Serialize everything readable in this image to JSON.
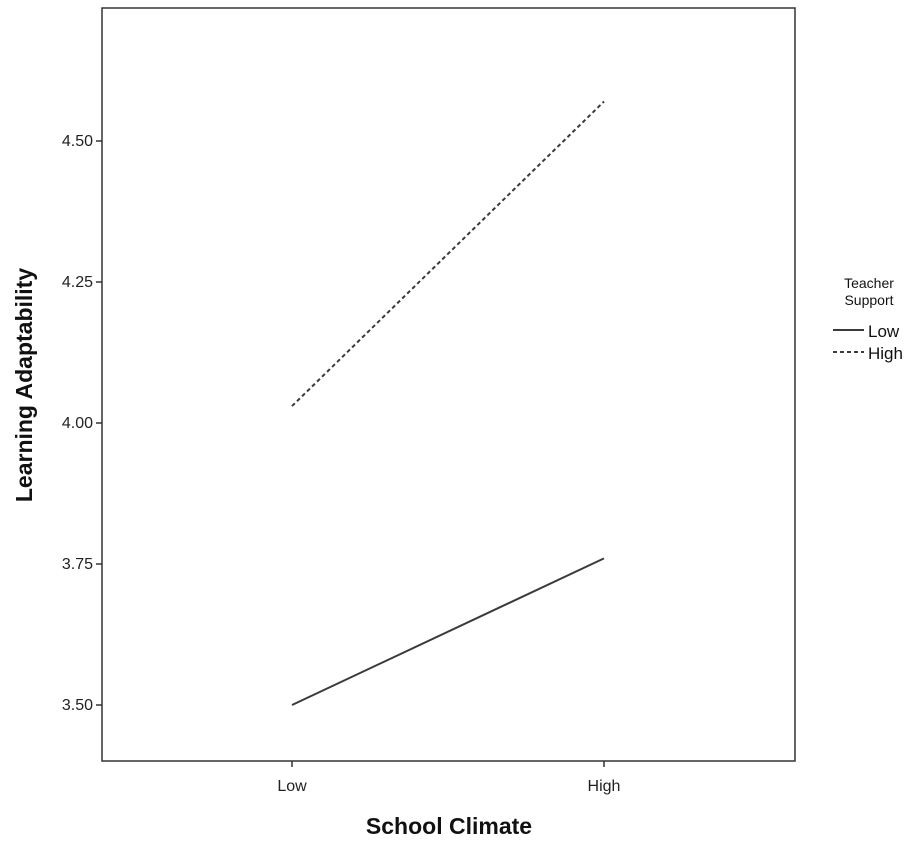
{
  "chart_data": {
    "type": "line",
    "title": "",
    "xlabel": "School Climate",
    "ylabel": "Learning Adaptability",
    "categories": [
      "Low",
      "High"
    ],
    "y_ticks": [
      "3.50",
      "3.75",
      "4.00",
      "4.25",
      "4.50"
    ],
    "ylim": [
      3.41,
      4.74
    ],
    "grid": false,
    "legend": {
      "title_lines": [
        "Teacher",
        "Support"
      ],
      "placement": "right"
    },
    "series": [
      {
        "name": "Low",
        "values": [
          3.5,
          3.76
        ],
        "line_style": "solid",
        "color": "#3a3a3a"
      },
      {
        "name": "High",
        "values": [
          4.03,
          4.57
        ],
        "line_style": "dashed",
        "color": "#3a3a3a"
      }
    ]
  }
}
